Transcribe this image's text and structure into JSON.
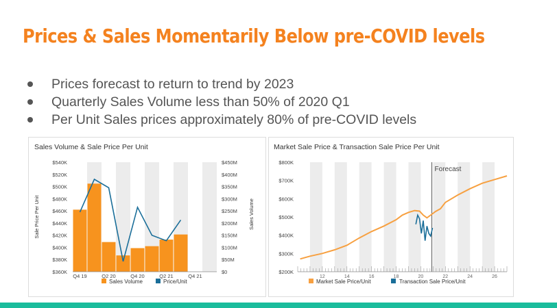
{
  "slide": {
    "title": "Prices & Sales Momentarily Below pre-COVID levels",
    "bullets": [
      "Prices forecast to return to trend by 2023",
      "Quarterly Sales Volume less than 50% of 2020 Q1",
      "Per Unit Sales prices approximately 80% of pre-COVID levels"
    ]
  },
  "colors": {
    "title": "#f4821f",
    "bar": "#f7931e",
    "line_blue": "#1a6e99",
    "orange_line": "#f7a040",
    "bottom_bar": "#1abc9c"
  },
  "chart_data": [
    {
      "type": "bar",
      "title": "Sales Volume & Sale Price Per Unit",
      "ylabel": "Sale Price Per Unit",
      "y2label": "Sales Volume",
      "x_tick_labels": [
        "Q4 19",
        "Q2 20",
        "Q4 20",
        "Q2 21",
        "Q4 21"
      ],
      "y_ticks": [
        "$360K",
        "$380K",
        "$400K",
        "$420K",
        "$440K",
        "$460K",
        "$480K",
        "$500K",
        "$520K",
        "$540K"
      ],
      "y2_ticks": [
        "$0",
        "$50M",
        "$100M",
        "$150M",
        "$200M",
        "$250M",
        "$300M",
        "$350M",
        "$400M",
        "$450M"
      ],
      "ylim": [
        360,
        540
      ],
      "y2lim": [
        0,
        450
      ],
      "grid": "alternating vertical bands",
      "legend_position": "bottom",
      "series": [
        {
          "name": "Sales Volume",
          "type": "bar",
          "axis": "right",
          "unit": "$M",
          "x": [
            0,
            1,
            2,
            3,
            4,
            5,
            6,
            7
          ],
          "values": [
            255,
            362,
            122,
            67,
            97,
            105,
            132,
            153
          ]
        },
        {
          "name": "Price/Unit",
          "type": "line",
          "axis": "left",
          "unit": "$K",
          "x": [
            0,
            1,
            2,
            3,
            4,
            5,
            6,
            7,
            8
          ],
          "values": [
            458,
            512,
            498,
            377,
            466,
            420,
            411,
            445,
            null
          ]
        }
      ],
      "x_count": 10
    },
    {
      "type": "line",
      "title": "Market Sale Price & Transaction Sale Price Per Unit",
      "xlim": [
        10,
        27
      ],
      "ylim": [
        200,
        800
      ],
      "y_ticks": [
        "$200K",
        "$300K",
        "$400K",
        "$500K",
        "$600K",
        "$700K",
        "$800K"
      ],
      "x_tick_labels": [
        "12",
        "14",
        "16",
        "18",
        "20",
        "22",
        "24",
        "26"
      ],
      "grid": "alternating vertical bands",
      "legend_position": "bottom",
      "annotations": [
        {
          "text": "Forecast",
          "x": 20.9
        }
      ],
      "series": [
        {
          "name": "Market Sale Price/Unit",
          "x": [
            10.2,
            11,
            12,
            13,
            14,
            15,
            16,
            17,
            18,
            18.5,
            19,
            19.5,
            19.9,
            20.2,
            20.5,
            20.9,
            21.2,
            21.6,
            22,
            23,
            24,
            25,
            26,
            27
          ],
          "y": [
            270,
            285,
            300,
            320,
            345,
            385,
            420,
            450,
            485,
            510,
            525,
            535,
            532,
            510,
            495,
            515,
            530,
            545,
            580,
            620,
            655,
            685,
            705,
            725
          ]
        },
        {
          "name": "Transaction Sale Price/Unit",
          "x": [
            19.6,
            19.75,
            19.9,
            20.05,
            20.2,
            20.35,
            20.5,
            20.65,
            20.8,
            20.95
          ],
          "y": [
            460,
            510,
            490,
            410,
            480,
            370,
            450,
            410,
            395,
            440
          ]
        }
      ]
    }
  ]
}
